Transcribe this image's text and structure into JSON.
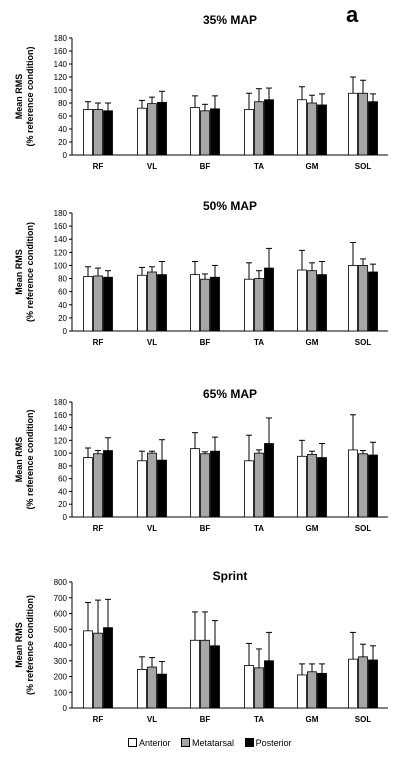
{
  "panel_label": "a",
  "colors": {
    "Anterior": "#ffffff",
    "Metatarsal": "#a6a6a6",
    "Posterior": "#000000"
  },
  "legend_entries": [
    "Anterior",
    "Metatarsal",
    "Posterior"
  ],
  "chart_data": [
    {
      "type": "bar",
      "title": "35% MAP",
      "ylabel_line1": "Mean RMS",
      "ylabel_line2": "(% reference condition)",
      "ylim": [
        0,
        180
      ],
      "yticks": [
        0,
        20,
        40,
        60,
        80,
        100,
        120,
        140,
        160,
        180
      ],
      "categories": [
        "RF",
        "VL",
        "BF",
        "TA",
        "GM",
        "SOL"
      ],
      "series": [
        {
          "name": "Anterior",
          "values": [
            70,
            72,
            73,
            70,
            85,
            95
          ],
          "errors": [
            12,
            12,
            18,
            25,
            20,
            25
          ]
        },
        {
          "name": "Metatarsal",
          "values": [
            70,
            79,
            68,
            82,
            80,
            95
          ],
          "errors": [
            10,
            10,
            10,
            20,
            12,
            20
          ]
        },
        {
          "name": "Posterior",
          "values": [
            68,
            81,
            71,
            85,
            77,
            82
          ],
          "errors": [
            12,
            17,
            20,
            18,
            17,
            12
          ]
        }
      ]
    },
    {
      "type": "bar",
      "title": "50% MAP",
      "ylabel_line1": "Mean RMS",
      "ylabel_line2": "(% reference condition)",
      "ylim": [
        0,
        180
      ],
      "yticks": [
        0,
        20,
        40,
        60,
        80,
        100,
        120,
        140,
        160,
        180
      ],
      "categories": [
        "RF",
        "VL",
        "BF",
        "TA",
        "GM",
        "SOL"
      ],
      "series": [
        {
          "name": "Anterior",
          "values": [
            83,
            85,
            86,
            79,
            93,
            100
          ],
          "errors": [
            15,
            12,
            20,
            25,
            30,
            35
          ]
        },
        {
          "name": "Metatarsal",
          "values": [
            84,
            90,
            79,
            80,
            92,
            100
          ],
          "errors": [
            12,
            8,
            8,
            12,
            12,
            10
          ]
        },
        {
          "name": "Posterior",
          "values": [
            82,
            86,
            82,
            96,
            86,
            90
          ],
          "errors": [
            10,
            20,
            18,
            30,
            20,
            12
          ]
        }
      ]
    },
    {
      "type": "bar",
      "title": "65% MAP",
      "ylabel_line1": "Mean RMS",
      "ylabel_line2": "(% reference condition)",
      "ylim": [
        0,
        180
      ],
      "yticks": [
        0,
        20,
        40,
        60,
        80,
        100,
        120,
        140,
        160,
        180
      ],
      "categories": [
        "RF",
        "VL",
        "BF",
        "TA",
        "GM",
        "SOL"
      ],
      "series": [
        {
          "name": "Anterior",
          "values": [
            93,
            88,
            107,
            88,
            95,
            105
          ],
          "errors": [
            15,
            15,
            25,
            40,
            25,
            55
          ]
        },
        {
          "name": "Metatarsal",
          "values": [
            99,
            100,
            99,
            100,
            98,
            99
          ],
          "errors": [
            5,
            3,
            3,
            5,
            5,
            5
          ]
        },
        {
          "name": "Posterior",
          "values": [
            104,
            89,
            103,
            115,
            93,
            97
          ],
          "errors": [
            20,
            32,
            22,
            40,
            22,
            20
          ]
        }
      ]
    },
    {
      "type": "bar",
      "title": "Sprint",
      "ylabel_line1": "Mean RMS",
      "ylabel_line2": "(% reference condition)",
      "ylim": [
        0,
        800
      ],
      "yticks": [
        0,
        100,
        200,
        300,
        400,
        500,
        600,
        700,
        800
      ],
      "categories": [
        "RF",
        "VL",
        "BF",
        "TA",
        "GM",
        "SOL"
      ],
      "series": [
        {
          "name": "Anterior",
          "values": [
            490,
            245,
            430,
            270,
            210,
            310
          ],
          "errors": [
            180,
            80,
            180,
            140,
            70,
            170
          ]
        },
        {
          "name": "Metatarsal",
          "values": [
            475,
            260,
            430,
            255,
            230,
            325
          ],
          "errors": [
            210,
            60,
            180,
            120,
            50,
            80
          ]
        },
        {
          "name": "Posterior",
          "values": [
            510,
            215,
            395,
            300,
            220,
            305
          ],
          "errors": [
            180,
            80,
            160,
            180,
            60,
            90
          ]
        }
      ]
    }
  ]
}
